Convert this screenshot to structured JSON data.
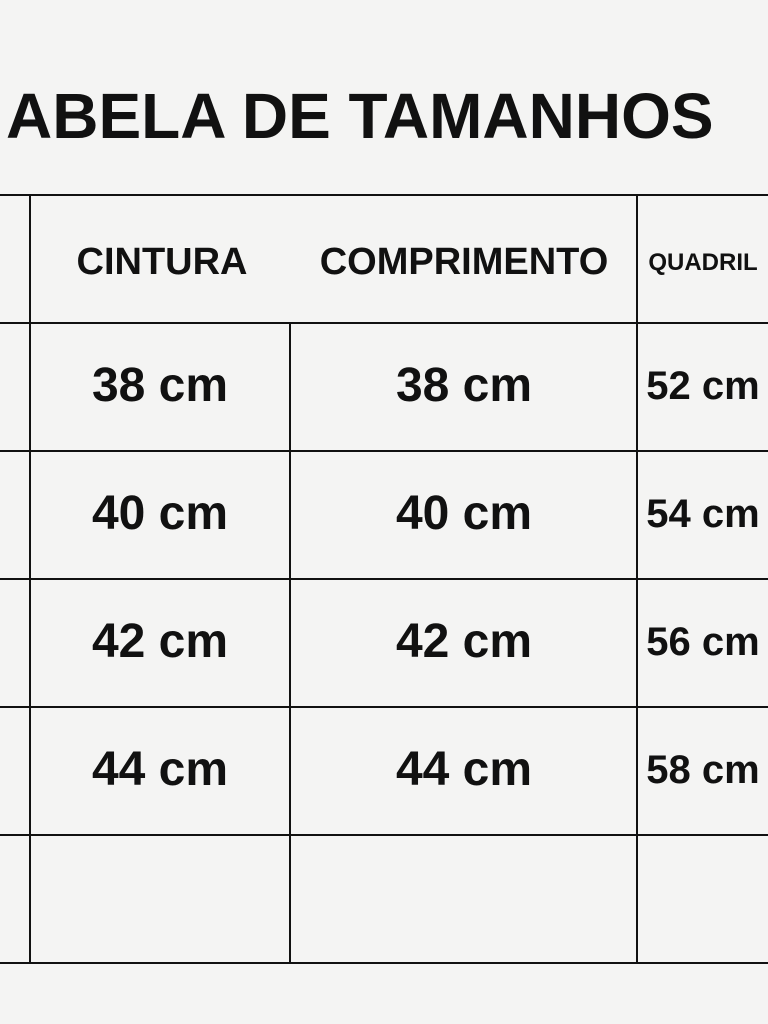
{
  "title": "ABELA DE TAMANHOS",
  "table": {
    "headers": [
      "CINTURA",
      "COMPRIMENTO",
      "QUADRIL"
    ],
    "rows": [
      [
        "38 cm",
        "38 cm",
        "52 cm"
      ],
      [
        "40 cm",
        "40 cm",
        "54 cm"
      ],
      [
        "42 cm",
        "42 cm",
        "56 cm"
      ],
      [
        "44 cm",
        "44 cm",
        "58 cm"
      ],
      [
        "",
        "",
        ""
      ]
    ]
  }
}
